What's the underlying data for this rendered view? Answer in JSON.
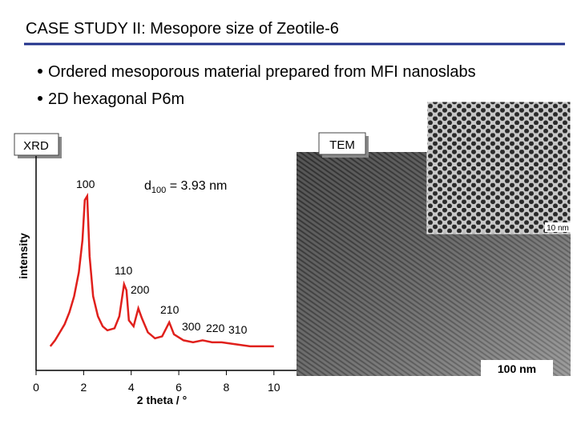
{
  "header": {
    "title": "CASE STUDY II: Mesopore size of Zeotile-6"
  },
  "bullets": [
    "Ordered mesoporous material prepared from MFI nanoslabs",
    "2D hexagonal P6m"
  ],
  "xrd_label": "XRD",
  "tem": {
    "label": "TEM",
    "inset_scale": "10 nm",
    "scale": "100 nm"
  },
  "chart_data": {
    "type": "line",
    "xlabel": "2 theta / °",
    "ylabel": "intensity",
    "annotation": {
      "text": "d",
      "subscript": "100",
      "rest": " = 3.93 nm"
    },
    "peak_labels": [
      "100",
      "110",
      "200",
      "210",
      "300",
      "220",
      "310"
    ],
    "x": [
      0.6,
      0.8,
      1.0,
      1.2,
      1.4,
      1.6,
      1.8,
      1.95,
      2.05,
      2.15,
      2.25,
      2.4,
      2.6,
      2.8,
      3.0,
      3.3,
      3.5,
      3.7,
      3.8,
      3.9,
      4.1,
      4.3,
      4.45,
      4.7,
      5.0,
      5.3,
      5.6,
      5.8,
      6.2,
      6.6,
      7.0,
      7.4,
      7.8,
      8.4,
      9.0,
      9.5,
      10
    ],
    "series": [
      {
        "color": "#e0201c",
        "values": [
          12,
          15,
          19,
          23,
          29,
          37,
          49,
          65,
          85,
          87,
          57,
          37,
          27,
          22,
          20,
          21,
          27,
          43,
          40,
          25,
          22,
          31,
          26,
          19,
          16,
          17,
          24,
          18,
          15,
          14,
          15,
          14,
          14,
          13,
          12,
          12,
          12
        ]
      }
    ],
    "xlim": [
      0,
      10.95
    ],
    "ylim": [
      0,
      107
    ],
    "xticks": [
      0,
      2,
      4,
      6,
      8,
      10
    ]
  }
}
